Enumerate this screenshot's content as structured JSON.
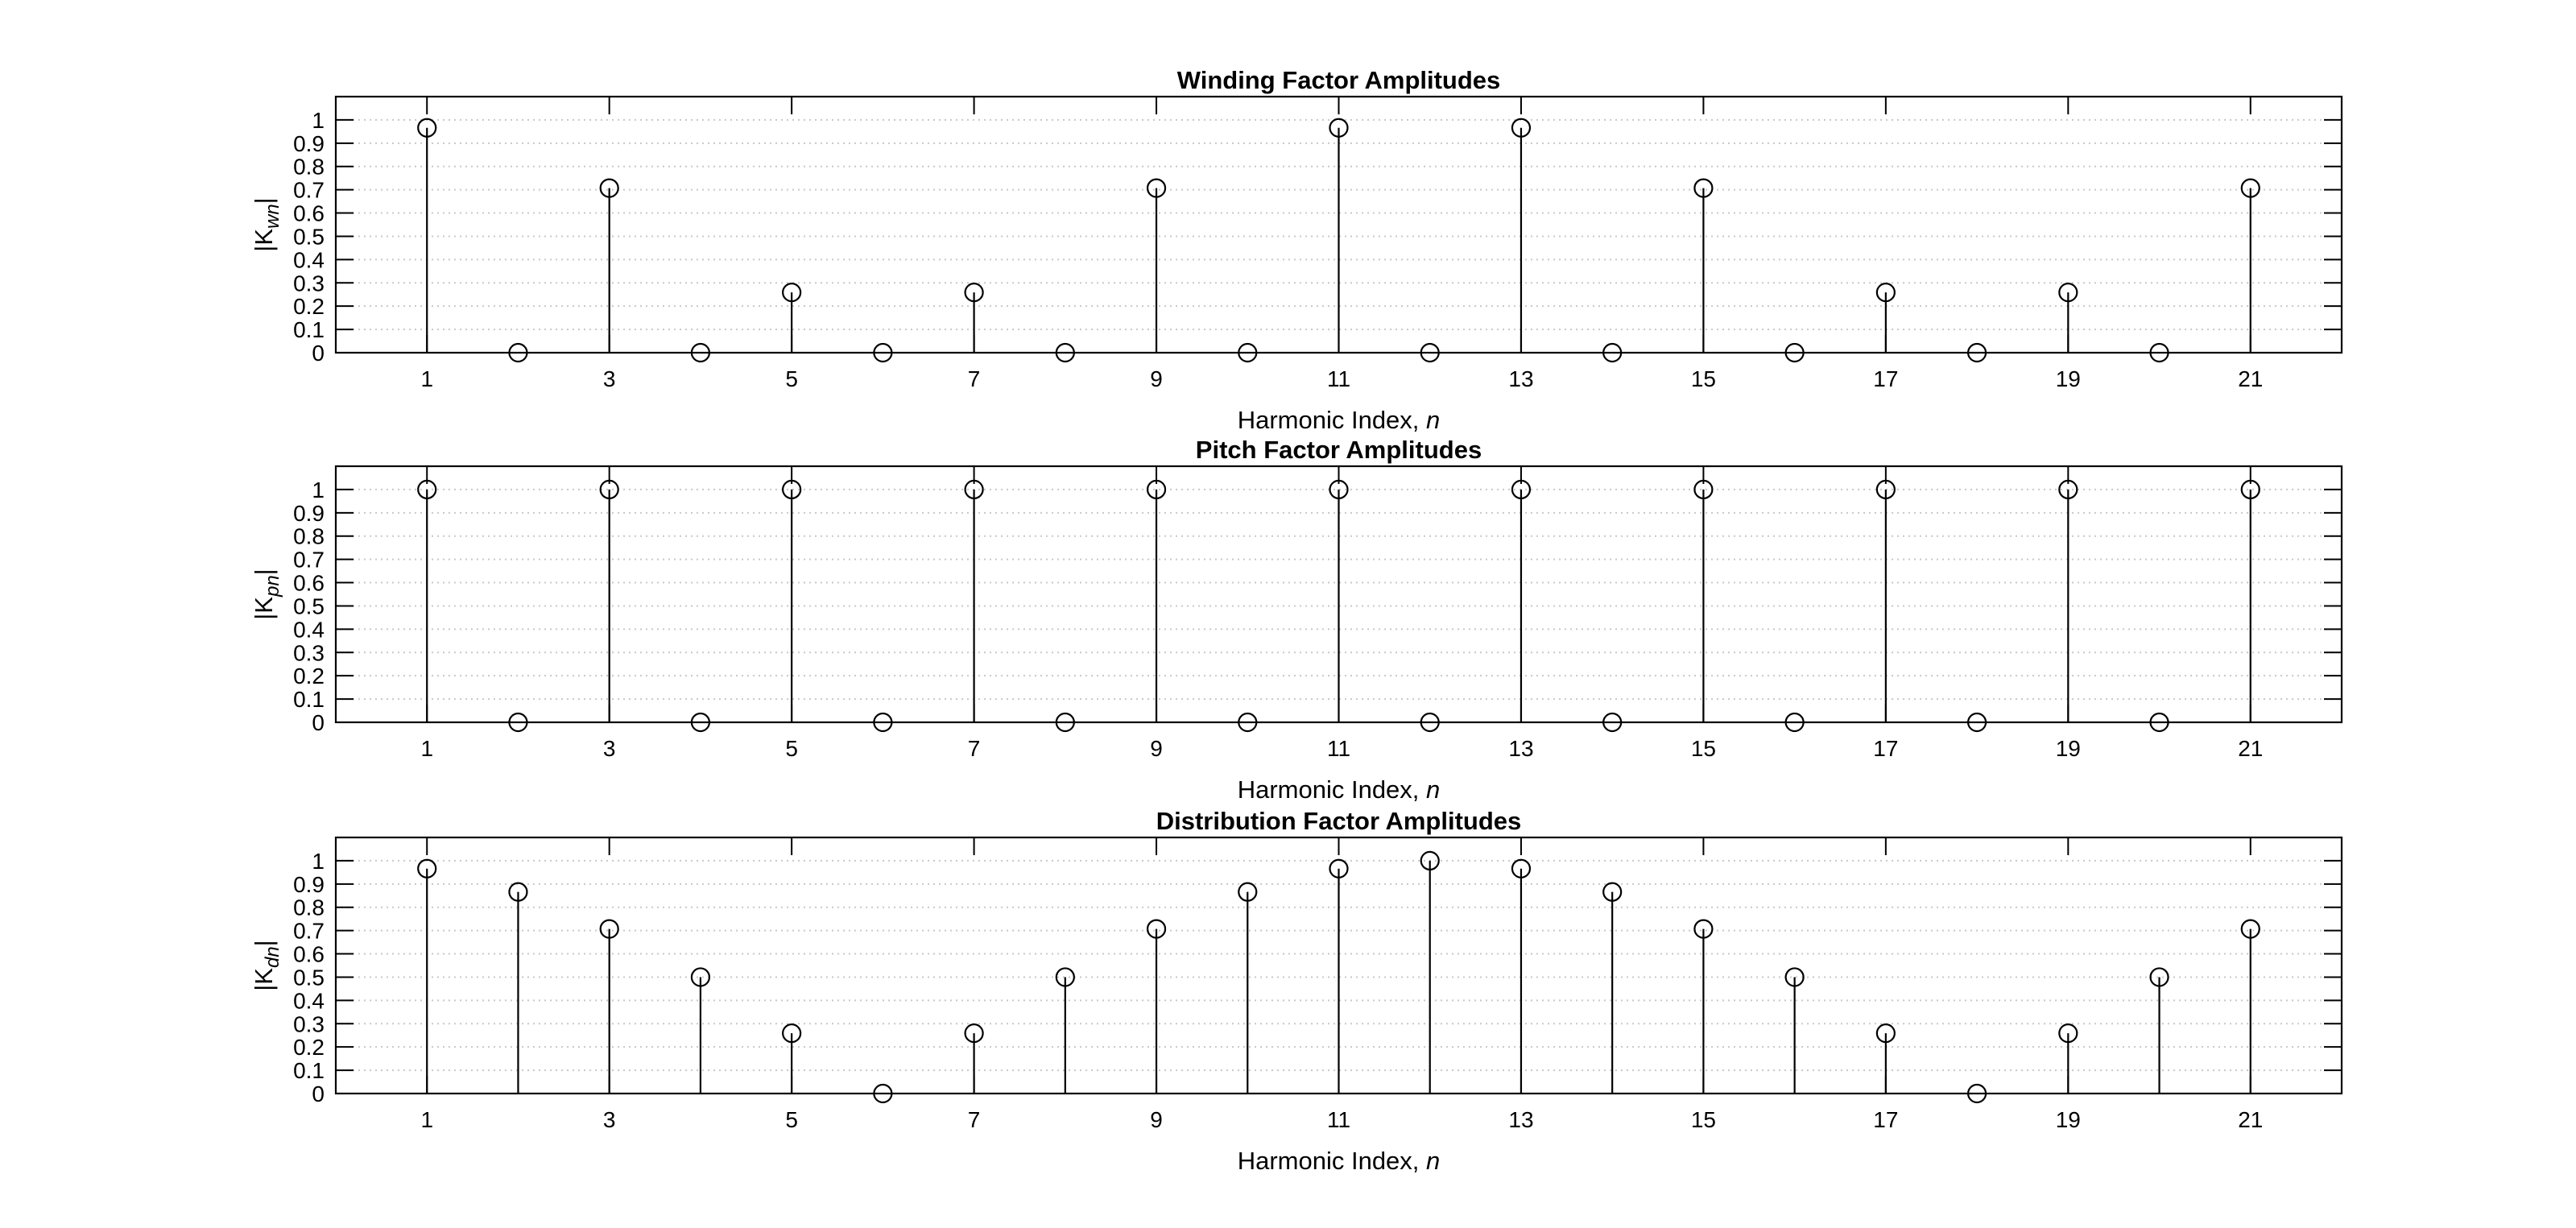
{
  "chart_data": [
    {
      "type": "stem",
      "title": "Winding Factor Amplitudes",
      "xlabel_text": "Harmonic Index,",
      "xlabel_var": "n",
      "ylabel_pre": "|K",
      "ylabel_sub": "wn",
      "ylabel_post": "|",
      "xlim": [
        0,
        22
      ],
      "ylim": [
        0,
        1.1
      ],
      "xticks": [
        1,
        3,
        5,
        7,
        9,
        11,
        13,
        15,
        17,
        19,
        21
      ],
      "yticks": [
        0,
        0.1,
        0.2,
        0.3,
        0.4,
        0.5,
        0.6,
        0.7,
        0.8,
        0.9,
        1
      ],
      "ytick_labels": [
        "0",
        "0.1",
        "0.2",
        "0.3",
        "0.4",
        "0.5",
        "0.6",
        "0.7",
        "0.8",
        "0.9",
        "1"
      ],
      "grid": "y-dotted",
      "x": [
        1,
        2,
        3,
        4,
        5,
        6,
        7,
        8,
        9,
        10,
        11,
        12,
        13,
        14,
        15,
        16,
        17,
        18,
        19,
        20,
        21
      ],
      "values": [
        0.966,
        0,
        0.707,
        0,
        0.259,
        0,
        0.259,
        0,
        0.707,
        0,
        0.966,
        0,
        0.966,
        0,
        0.707,
        0,
        0.259,
        0,
        0.259,
        0,
        0.707
      ]
    },
    {
      "type": "stem",
      "title": "Pitch Factor Amplitudes",
      "xlabel_text": "Harmonic Index,",
      "xlabel_var": "n",
      "ylabel_pre": "|K",
      "ylabel_sub": "pn",
      "ylabel_post": "|",
      "xlim": [
        0,
        22
      ],
      "ylim": [
        0,
        1.1
      ],
      "xticks": [
        1,
        3,
        5,
        7,
        9,
        11,
        13,
        15,
        17,
        19,
        21
      ],
      "yticks": [
        0,
        0.1,
        0.2,
        0.3,
        0.4,
        0.5,
        0.6,
        0.7,
        0.8,
        0.9,
        1
      ],
      "ytick_labels": [
        "0",
        "0.1",
        "0.2",
        "0.3",
        "0.4",
        "0.5",
        "0.6",
        "0.7",
        "0.8",
        "0.9",
        "1"
      ],
      "grid": "y-dotted",
      "x": [
        1,
        2,
        3,
        4,
        5,
        6,
        7,
        8,
        9,
        10,
        11,
        12,
        13,
        14,
        15,
        16,
        17,
        18,
        19,
        20,
        21
      ],
      "values": [
        1,
        0,
        1,
        0,
        1,
        0,
        1,
        0,
        1,
        0,
        1,
        0,
        1,
        0,
        1,
        0,
        1,
        0,
        1,
        0,
        1
      ]
    },
    {
      "type": "stem",
      "title": "Distribution Factor Amplitudes",
      "xlabel_text": "Harmonic Index,",
      "xlabel_var": "n",
      "ylabel_pre": "|K",
      "ylabel_sub": "dn",
      "ylabel_post": "|",
      "xlim": [
        0,
        22
      ],
      "ylim": [
        0,
        1.1
      ],
      "xticks": [
        1,
        3,
        5,
        7,
        9,
        11,
        13,
        15,
        17,
        19,
        21
      ],
      "yticks": [
        0,
        0.1,
        0.2,
        0.3,
        0.4,
        0.5,
        0.6,
        0.7,
        0.8,
        0.9,
        1
      ],
      "ytick_labels": [
        "0",
        "0.1",
        "0.2",
        "0.3",
        "0.4",
        "0.5",
        "0.6",
        "0.7",
        "0.8",
        "0.9",
        "1"
      ],
      "grid": "y-dotted",
      "x": [
        1,
        2,
        3,
        4,
        5,
        6,
        7,
        8,
        9,
        10,
        11,
        12,
        13,
        14,
        15,
        16,
        17,
        18,
        19,
        20,
        21
      ],
      "values": [
        0.966,
        0.866,
        0.707,
        0.5,
        0.259,
        0,
        0.259,
        0.5,
        0.707,
        0.866,
        0.966,
        1,
        0.966,
        0.866,
        0.707,
        0.5,
        0.259,
        0,
        0.259,
        0.5,
        0.707
      ]
    }
  ]
}
